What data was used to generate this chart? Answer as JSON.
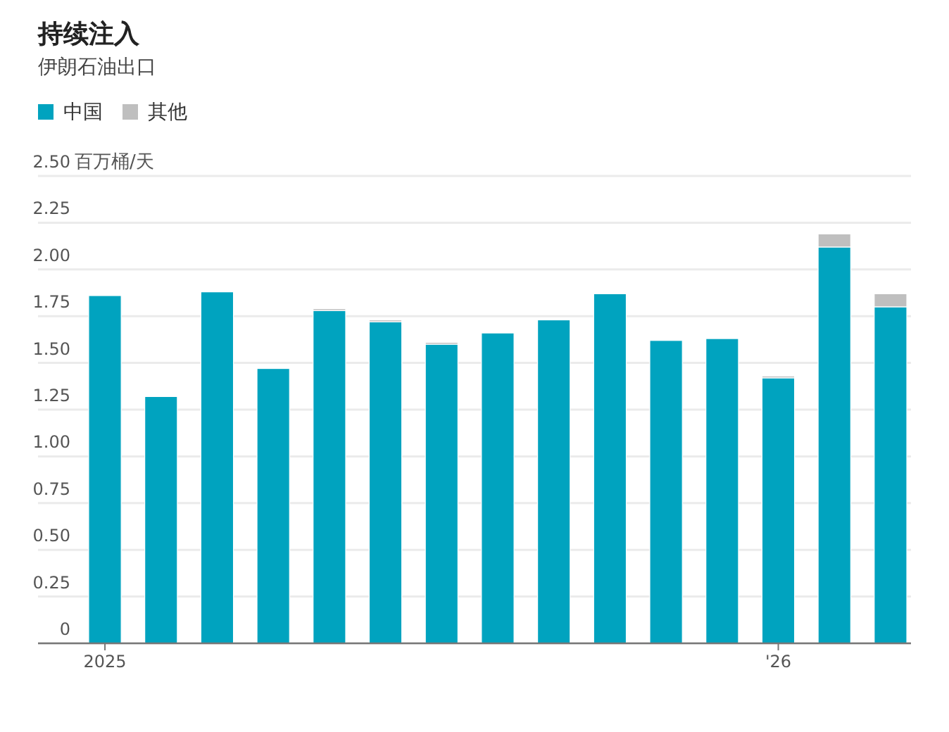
{
  "chart_data": {
    "type": "bar",
    "title": "持续注入",
    "subtitle": "伊朗石油出口",
    "ylabel": "百万桶/天",
    "stacked": true,
    "legend": "top left",
    "grid": "y",
    "categories": [
      "2025",
      null,
      null,
      null,
      null,
      null,
      null,
      null,
      null,
      null,
      null,
      null,
      "'26",
      null,
      null
    ],
    "series": [
      {
        "name": "中国",
        "color": "#00a3bf",
        "values": [
          1.86,
          1.32,
          1.88,
          1.47,
          1.78,
          1.72,
          1.6,
          1.66,
          1.73,
          1.87,
          1.62,
          1.63,
          1.42,
          2.12,
          1.8
        ]
      },
      {
        "name": "其他",
        "color": "#bfbfbf",
        "values": [
          0,
          0,
          0,
          0,
          0.01,
          0.01,
          0.01,
          0,
          0,
          0,
          0,
          0,
          0.01,
          0.07,
          0.07
        ]
      }
    ],
    "ylim": [
      0,
      2.5
    ],
    "yticks": [
      0,
      0.25,
      {
        "value": 0.5,
        "label": "0.50"
      },
      0.75,
      {
        "value": 1,
        "label": "1.00"
      },
      1.25,
      {
        "value": 1.5,
        "label": "1.50"
      },
      1.75,
      {
        "value": 2,
        "label": "2.00"
      },
      2.25,
      {
        "value": 2.5,
        "label": "2.50"
      }
    ]
  }
}
